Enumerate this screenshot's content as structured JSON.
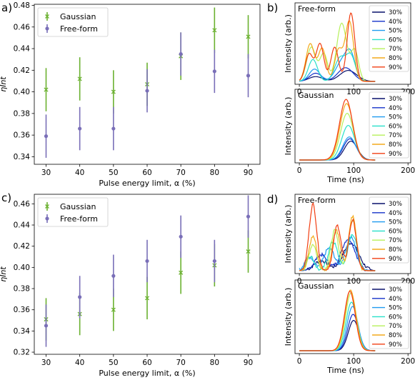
{
  "panels": {
    "a": {
      "label": "a)"
    },
    "b": {
      "label": "b)"
    },
    "c": {
      "label": "c)"
    },
    "d": {
      "label": "d)"
    }
  },
  "colors": {
    "gaussian": "#6bb130",
    "freeform": "#7a6fb8"
  },
  "chart_data": [
    {
      "id": "a",
      "type": "scatter",
      "xlabel": "Pulse energy limit, α (%)",
      "ylabel": "ηInt",
      "x": [
        30,
        40,
        50,
        60,
        70,
        80,
        90
      ],
      "xticks": [
        "30",
        "40",
        "50",
        "60",
        "70",
        "80",
        "90"
      ],
      "yticks": [
        "0.34",
        "0.36",
        "0.38",
        "0.40",
        "0.42",
        "0.44",
        "0.46",
        "0.48"
      ],
      "xlim": [
        26.5,
        93.5
      ],
      "ylim": [
        0.333,
        0.481
      ],
      "legend": "top-left",
      "series": [
        {
          "name": "Gaussian",
          "marker": "x",
          "values": [
            0.402,
            0.412,
            0.4,
            0.407,
            0.433,
            0.457,
            0.451
          ],
          "err": [
            0.02,
            0.02,
            0.02,
            0.02,
            0.022,
            0.021,
            0.02
          ]
        },
        {
          "name": "Free-form",
          "marker": "o",
          "values": [
            0.359,
            0.366,
            0.366,
            0.401,
            0.435,
            0.419,
            0.415
          ],
          "err": [
            0.02,
            0.02,
            0.02,
            0.02,
            0.02,
            0.02,
            0.02
          ]
        }
      ]
    },
    {
      "id": "c",
      "type": "scatter",
      "xlabel": "Pulse energy limit, α (%)",
      "ylabel": "ηInt",
      "x": [
        30,
        40,
        50,
        60,
        70,
        80,
        90
      ],
      "xticks": [
        "30",
        "40",
        "50",
        "60",
        "70",
        "80",
        "90"
      ],
      "yticks": [
        "0.32",
        "0.34",
        "0.36",
        "0.38",
        "0.40",
        "0.42",
        "0.44",
        "0.46"
      ],
      "xlim": [
        26.5,
        93.5
      ],
      "ylim": [
        0.318,
        0.469
      ],
      "legend": "top-left",
      "series": [
        {
          "name": "Gaussian",
          "marker": "x",
          "values": [
            0.351,
            0.356,
            0.36,
            0.371,
            0.395,
            0.402,
            0.415
          ],
          "err": [
            0.02,
            0.02,
            0.02,
            0.02,
            0.02,
            0.02,
            0.02
          ]
        },
        {
          "name": "Free-form",
          "marker": "o",
          "values": [
            0.345,
            0.372,
            0.392,
            0.406,
            0.429,
            0.406,
            0.448
          ],
          "err": [
            0.02,
            0.02,
            0.02,
            0.02,
            0.02,
            0.02,
            0.02
          ]
        }
      ]
    },
    {
      "id": "b-top",
      "type": "line",
      "title": "Free-form",
      "ylabel": "Intensity (arb.)",
      "xticks": [
        "0",
        "100",
        "200"
      ],
      "xlim": [
        -8,
        205
      ],
      "legend": "right",
      "series": [
        {
          "name": "30%",
          "color": "#08106b",
          "peaks": [
            [
              30,
              0.07,
              18
            ],
            [
              90,
              0.16,
              22
            ]
          ]
        },
        {
          "name": "40%",
          "color": "#1330c9",
          "peaks": [
            [
              30,
              0.12,
              16
            ],
            [
              85,
              0.2,
              20
            ]
          ]
        },
        {
          "name": "50%",
          "color": "#1f9bf0",
          "peaks": [
            [
              28,
              0.18,
              14
            ],
            [
              80,
              0.3,
              18
            ],
            [
              95,
              0.3,
              12
            ]
          ]
        },
        {
          "name": "60%",
          "color": "#27e0c9",
          "peaks": [
            [
              25,
              0.32,
              12
            ],
            [
              75,
              0.34,
              14
            ],
            [
              95,
              0.36,
              12
            ]
          ]
        },
        {
          "name": "70%",
          "color": "#b6f05a",
          "peaks": [
            [
              22,
              0.5,
              12
            ],
            [
              45,
              0.4,
              10
            ],
            [
              78,
              0.85,
              13
            ],
            [
              102,
              0.45,
              10
            ]
          ]
        },
        {
          "name": "80%",
          "color": "#f3aa1b",
          "peaks": [
            [
              20,
              0.55,
              11
            ],
            [
              42,
              0.48,
              10
            ],
            [
              72,
              0.45,
              10
            ],
            [
              92,
              0.88,
              11
            ]
          ]
        },
        {
          "name": "90%",
          "color": "#f23e12",
          "peaks": [
            [
              18,
              0.4,
              10
            ],
            [
              38,
              0.55,
              10
            ],
            [
              65,
              0.5,
              10
            ],
            [
              95,
              1.0,
              10
            ]
          ]
        }
      ]
    },
    {
      "id": "b-bottom",
      "type": "line",
      "title": "Gaussian",
      "ylabel": "Intensity (arb.)",
      "xlabel": "Time (ns)",
      "xticks": [
        "0",
        "100",
        "200"
      ],
      "xlim": [
        -8,
        205
      ],
      "legend": "right",
      "series": [
        {
          "name": "30%",
          "color": "#08106b",
          "peaks": [
            [
              95,
              0.31,
              17
            ]
          ]
        },
        {
          "name": "40%",
          "color": "#1330c9",
          "peaks": [
            [
              93,
              0.35,
              17
            ]
          ]
        },
        {
          "name": "50%",
          "color": "#1f9bf0",
          "peaks": [
            [
              92,
              0.38,
              17
            ]
          ]
        },
        {
          "name": "60%",
          "color": "#27e0c9",
          "peaks": [
            [
              90,
              0.57,
              17
            ]
          ]
        },
        {
          "name": "70%",
          "color": "#b6f05a",
          "peaks": [
            [
              88,
              0.77,
              17
            ]
          ]
        },
        {
          "name": "80%",
          "color": "#f3aa1b",
          "peaks": [
            [
              87,
              0.93,
              17
            ]
          ]
        },
        {
          "name": "90%",
          "color": "#f23e12",
          "peaks": [
            [
              86,
              1.0,
              17
            ]
          ]
        }
      ]
    },
    {
      "id": "d-top",
      "type": "line",
      "title": "Free-form",
      "ylabel": "Intensity (arb.)",
      "xticks": [
        "0",
        "100",
        "200"
      ],
      "xlim": [
        -8,
        205
      ],
      "legend": "right",
      "series": [
        {
          "name": "30%",
          "color": "#08106b",
          "peaks": [
            [
              95,
              0.42,
              20
            ],
            [
              40,
              0.15,
              18
            ]
          ]
        },
        {
          "name": "40%",
          "color": "#1330c9",
          "peaks": [
            [
              90,
              0.48,
              18
            ],
            [
              40,
              0.24,
              16
            ]
          ]
        },
        {
          "name": "50%",
          "color": "#1f9bf0",
          "peaks": [
            [
              95,
              0.5,
              14
            ],
            [
              55,
              0.34,
              14
            ],
            [
              18,
              0.2,
              12
            ]
          ]
        },
        {
          "name": "60%",
          "color": "#27e0c9",
          "peaks": [
            [
              98,
              0.55,
              12
            ],
            [
              62,
              0.44,
              12
            ],
            [
              20,
              0.22,
              10
            ]
          ]
        },
        {
          "name": "70%",
          "color": "#b6f05a",
          "peaks": [
            [
              98,
              0.76,
              11
            ],
            [
              65,
              0.6,
              10
            ],
            [
              25,
              0.4,
              10
            ]
          ]
        },
        {
          "name": "80%",
          "color": "#f3aa1b",
          "peaks": [
            [
              98,
              0.82,
              10
            ],
            [
              68,
              0.62,
              10
            ],
            [
              25,
              0.52,
              10
            ]
          ]
        },
        {
          "name": "90%",
          "color": "#f23e12",
          "peaks": [
            [
              25,
              1.0,
              10
            ],
            [
              70,
              0.68,
              10
            ],
            [
              98,
              0.76,
              10
            ]
          ]
        }
      ]
    },
    {
      "id": "d-bottom",
      "type": "line",
      "title": "Gaussian",
      "ylabel": "Intensity (arb.)",
      "xlabel": "Time (ns)",
      "xticks": [
        "0",
        "100",
        "200"
      ],
      "xlim": [
        -8,
        205
      ],
      "legend": "right",
      "series": [
        {
          "name": "30%",
          "color": "#08106b",
          "peaks": [
            [
              100,
              0.5,
              14
            ]
          ]
        },
        {
          "name": "40%",
          "color": "#1330c9",
          "peaks": [
            [
              99,
              0.6,
              14
            ]
          ]
        },
        {
          "name": "50%",
          "color": "#1f9bf0",
          "peaks": [
            [
              98,
              0.73,
              14
            ]
          ]
        },
        {
          "name": "60%",
          "color": "#27e0c9",
          "peaks": [
            [
              96,
              0.8,
              14
            ]
          ]
        },
        {
          "name": "70%",
          "color": "#b6f05a",
          "peaks": [
            [
              95,
              0.95,
              14
            ]
          ]
        },
        {
          "name": "80%",
          "color": "#f3aa1b",
          "peaks": [
            [
              94,
              1.0,
              14
            ]
          ]
        },
        {
          "name": "90%",
          "color": "#f23e12",
          "peaks": [
            [
              93,
              0.98,
              14
            ]
          ]
        }
      ]
    }
  ]
}
